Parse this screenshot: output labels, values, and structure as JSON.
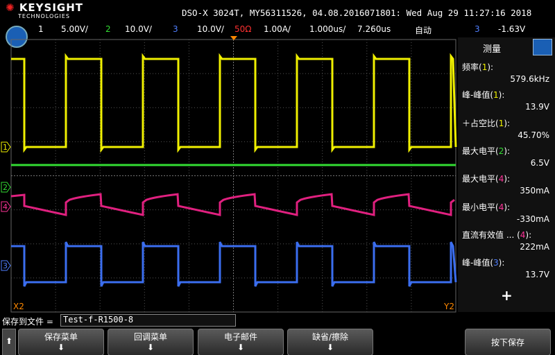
{
  "header": {
    "brand": "KEYSIGHT",
    "brand_sub": "TECHNOLOGIES",
    "title": "DSO-X 3024T, MY56311526, 04.08.2016071801: Wed Aug 29 11:27:16 2018"
  },
  "channel_bar": [
    {
      "text": "1",
      "color": "#ffffff"
    },
    {
      "text": "5.00V/",
      "color": "#ffffff"
    },
    {
      "text": "2",
      "color": "#33dd33"
    },
    {
      "text": "10.0V/",
      "color": "#ffffff"
    },
    {
      "text": "3",
      "color": "#4f7fff"
    },
    {
      "text": "10.0V/",
      "color": "#ffffff"
    },
    {
      "text": "50Ω",
      "color": "#ff3030"
    },
    {
      "text": "1.00A/",
      "color": "#ffffff"
    },
    {
      "text": "1.000us/",
      "color": "#ffffff"
    },
    {
      "text": "7.260us",
      "color": "#ffffff"
    },
    {
      "text": "自动",
      "color": "#ffffff"
    },
    {
      "text": "3",
      "color": "#4f7fff"
    },
    {
      "text": "-1.63V",
      "color": "#ffffff"
    }
  ],
  "markers": {
    "ch1": "1",
    "ch2": "2",
    "ch4": "4",
    "ch3": "3",
    "x2": "X2",
    "y2": "Y2"
  },
  "panel": {
    "title": "测量",
    "measurements": [
      {
        "label": "频率(",
        "channel": "1",
        "end": "):",
        "color": "#f0f000",
        "value": "579.6kHz"
      },
      {
        "label": "峰-峰值(",
        "channel": "1",
        "end": "):",
        "color": "#f0f000",
        "value": "13.9V"
      },
      {
        "label": "＋占空比(",
        "channel": "1",
        "end": "):",
        "color": "#f0f000",
        "value": "45.70%"
      },
      {
        "label": "最大电平(",
        "channel": "2",
        "end": "):",
        "color": "#33dd33",
        "value": "6.5V"
      },
      {
        "label": "最大电平(",
        "channel": "4",
        "end": "):",
        "color": "#ff3399",
        "value": "350mA"
      },
      {
        "label": "最小电平(",
        "channel": "4",
        "end": "):",
        "color": "#ff3399",
        "value": "-330mA"
      },
      {
        "label": "直流有效值 ... (",
        "channel": "4",
        "end": "):",
        "color": "#ff3399",
        "value": "222mA"
      },
      {
        "label": "峰-峰值(",
        "channel": "3",
        "end": "):",
        "color": "#4f7fff",
        "value": "13.7V"
      }
    ],
    "add": "+"
  },
  "save_bar": {
    "label": "保存到文件 =",
    "filename": "Test-f-R1500-8"
  },
  "softkeys": [
    "保存菜单",
    "回调菜单",
    "电子邮件",
    "缺省/擦除",
    "按下保存"
  ]
}
